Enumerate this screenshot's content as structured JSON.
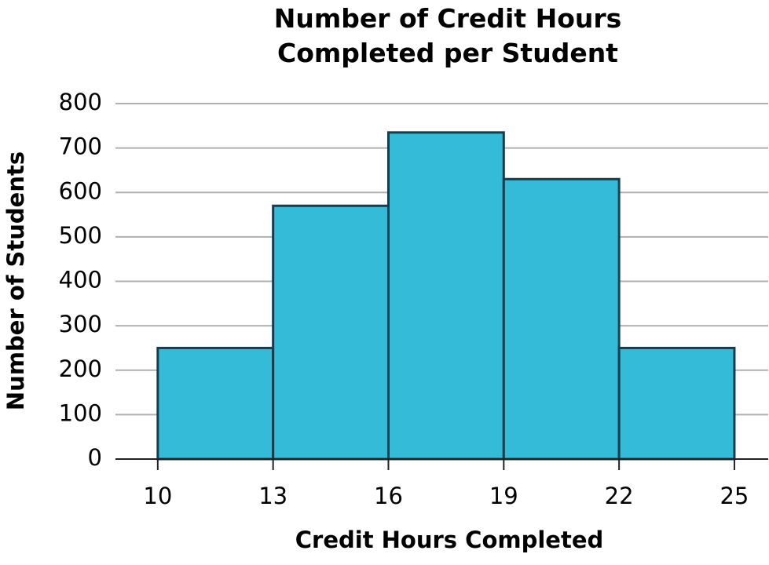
{
  "chart_data": {
    "type": "histogram",
    "title": "Number of Credit Hours Completed per Student",
    "xlabel": "Credit Hours Completed",
    "ylabel": "Number of Students",
    "bins": [
      10,
      13,
      16,
      19,
      22,
      25
    ],
    "values": [
      250,
      570,
      735,
      630,
      250
    ],
    "color": "#33bbd8",
    "edgecolor": "#183c4c",
    "xlim": [
      8.9,
      25.9
    ],
    "ylim": [
      0,
      800
    ],
    "xticks": [
      10,
      13,
      16,
      19,
      22,
      25
    ],
    "yticks": [
      0,
      100,
      200,
      300,
      400,
      500,
      600,
      700,
      800
    ],
    "grid": true
  }
}
